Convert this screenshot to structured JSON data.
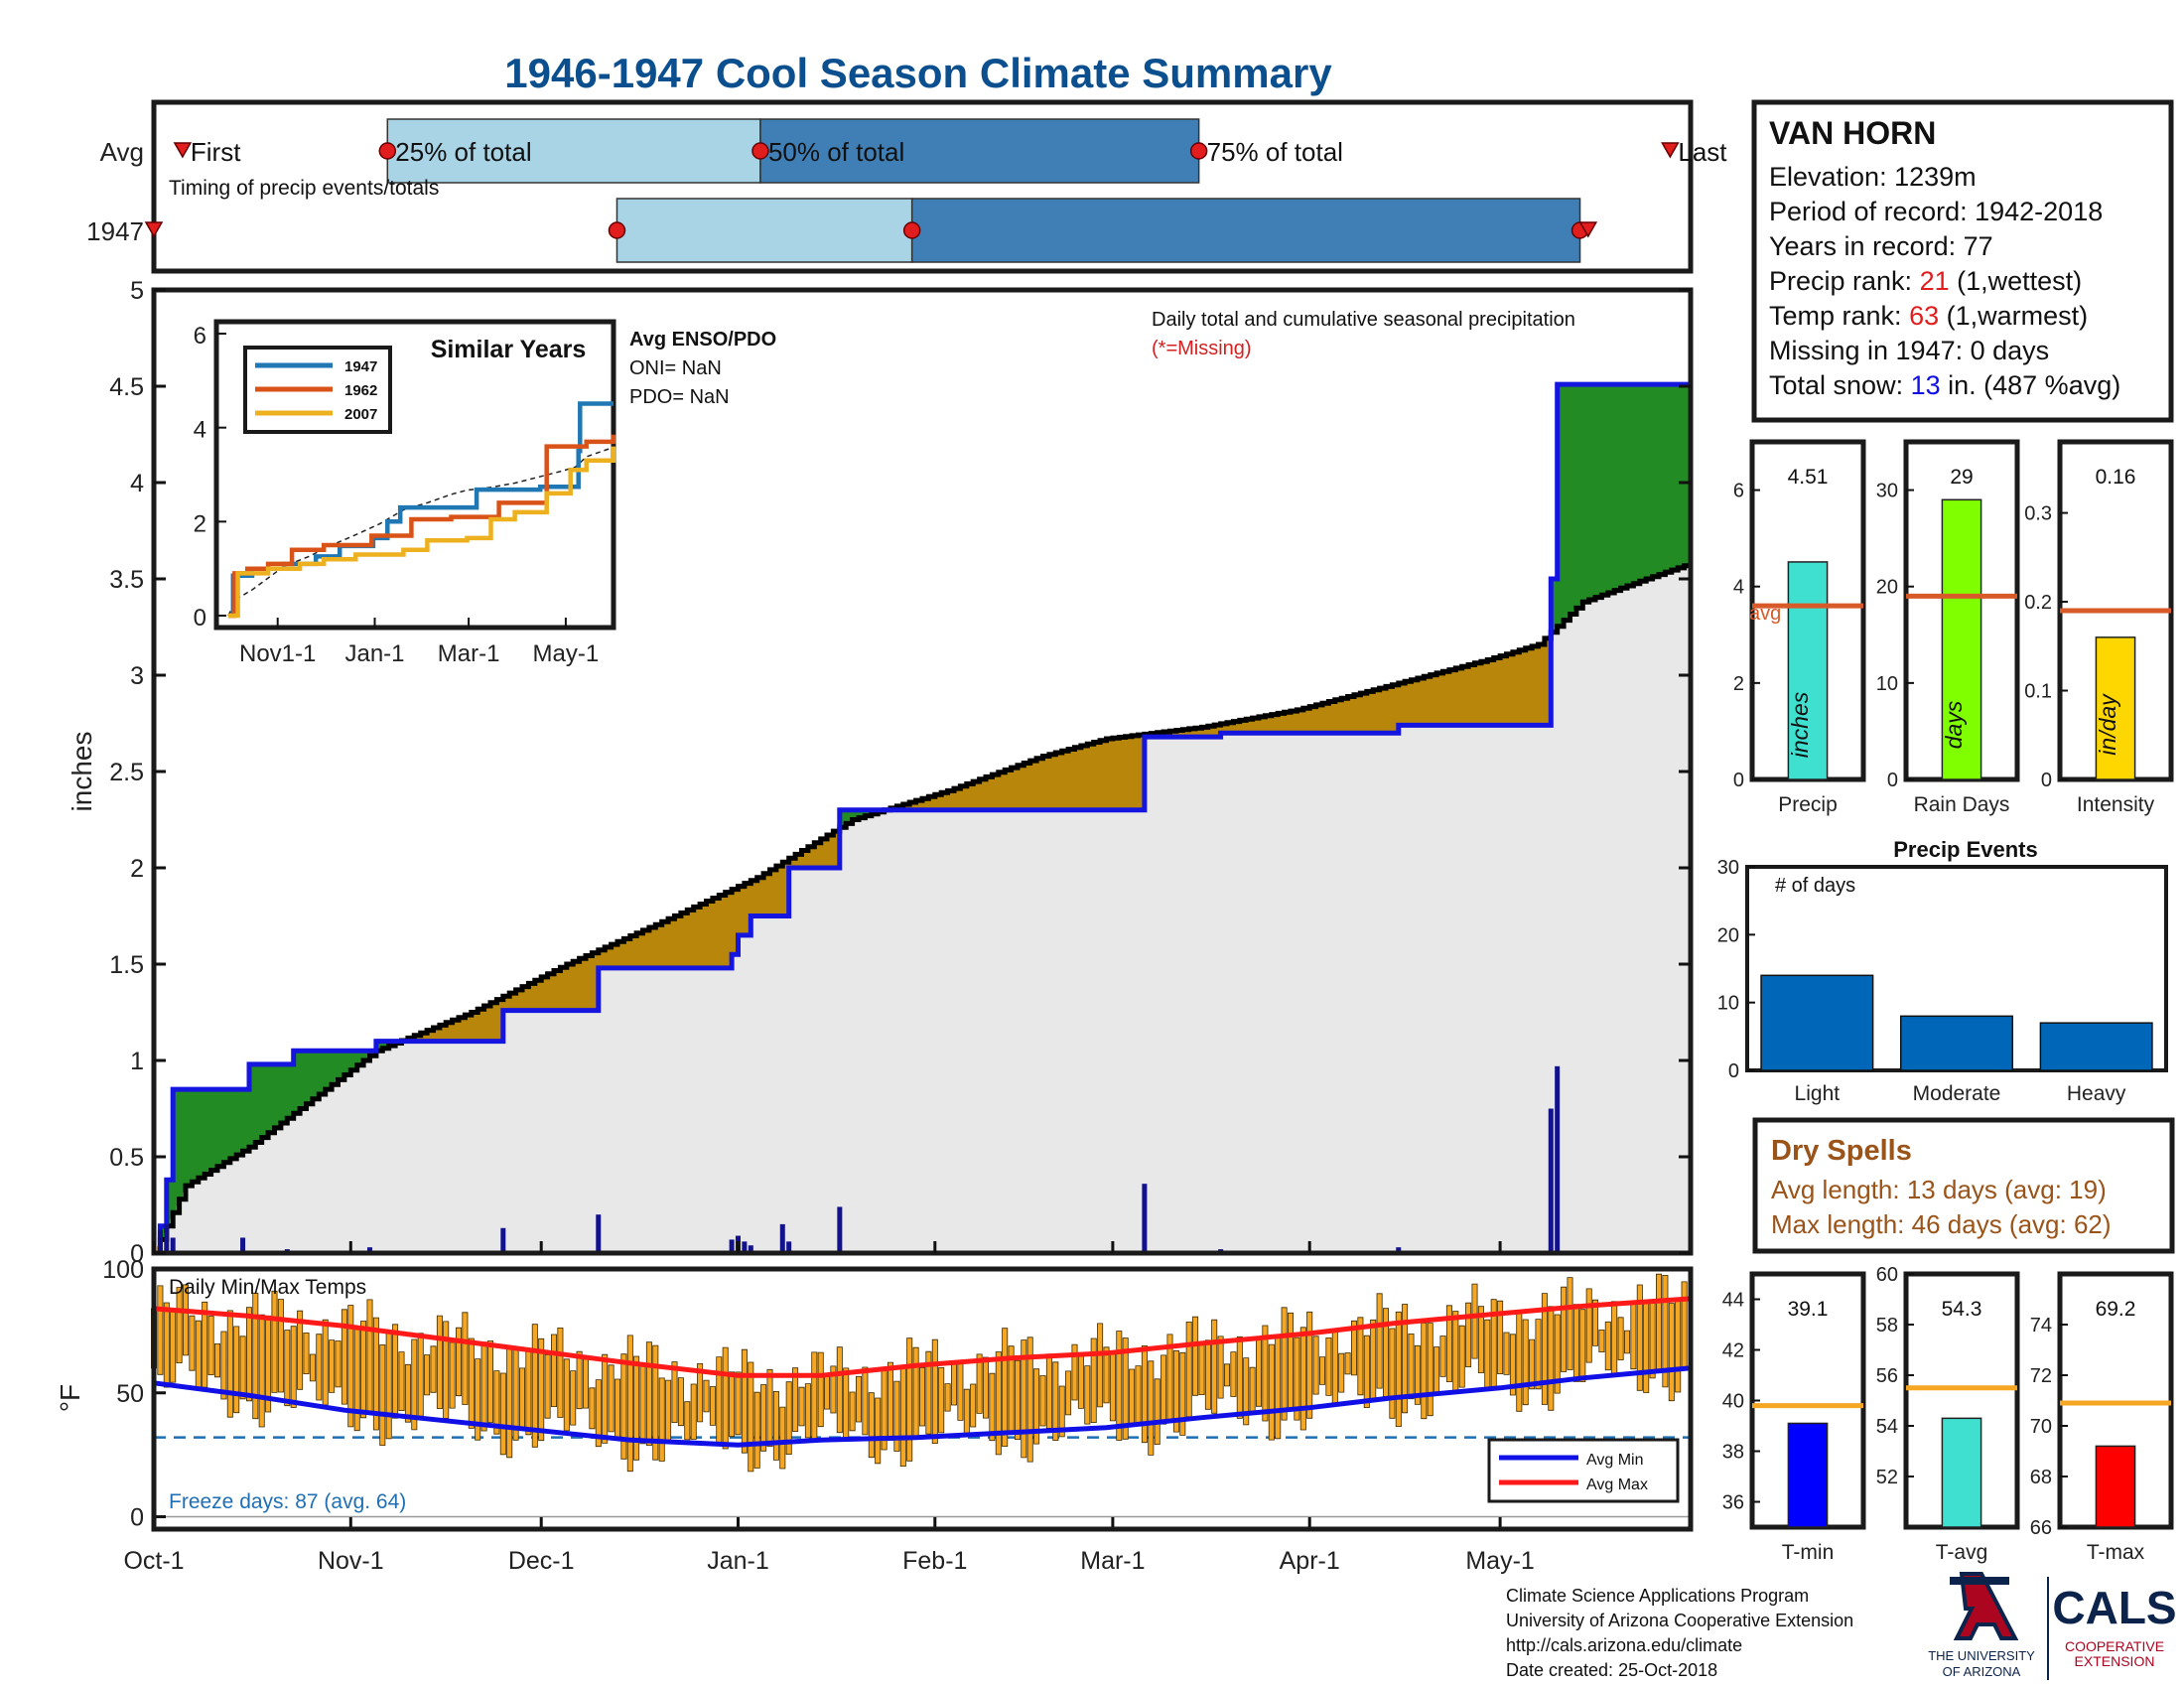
{
  "title": "1946-1947 Cool Season Climate Summary",
  "colors": {
    "title": "#0b4f8f",
    "light_blue": "#a8d4e6",
    "dark_blue": "#3f7fb5",
    "marker_red": "#e11d1d",
    "green": "#238b23",
    "brown": "#b8860b",
    "fill_grey": "#e8e8e8",
    "avg_orange": "#d85a28",
    "temp_bar": "#f5a623",
    "max_red": "#ff1a1a",
    "min_blue": "#1010e6"
  },
  "timing": {
    "rows": [
      "Avg",
      "1947"
    ],
    "note": "Timing of precip events/totals",
    "labels": {
      "first": "First",
      "p25": "25% of total",
      "p50": "50% of total",
      "p75": "75% of total",
      "last": "Last"
    },
    "avg": {
      "first_day": 7,
      "p25_day": 57,
      "p50_day": 148,
      "p75_day": 255,
      "last_day": 370
    },
    "y1947": {
      "first_day": 0,
      "p25_day": 113,
      "p50_day": 185,
      "p75_day": 348,
      "last_day": 350
    }
  },
  "station": {
    "name": "VAN HORN",
    "elevation": "Elevation: 1239m",
    "period": "Period of record: 1942-2018",
    "years": "Years in record: 77",
    "precip_rank_label": "Precip rank: ",
    "precip_rank": "21",
    "precip_rank_note": " (1,wettest)",
    "temp_rank_label": "Temp rank: ",
    "temp_rank": "63",
    "temp_rank_note": " (1,warmest)",
    "missing": "Missing in 1947: 0 days",
    "snow_label": "Total snow: ",
    "snow_value": "13",
    "snow_note": " in. (487 %avg)"
  },
  "main_plot": {
    "ylabel": "inches",
    "annotation_line1": "Daily total and cumulative seasonal precipitation",
    "annotation_line2": "(*=Missing)",
    "x_ticks": [
      "Oct-1",
      "Nov-1",
      "Dec-1",
      "Jan-1",
      "Feb-1",
      "Mar-1",
      "Apr-1",
      "May-1"
    ],
    "x_tick_days": [
      0,
      31,
      61,
      92,
      123,
      151,
      182,
      212
    ],
    "y_ticks": [
      "0",
      "0.5",
      "1",
      "1.5",
      "2",
      "2.5",
      "3",
      "3.5",
      "4",
      "4.5",
      "5"
    ],
    "ylim": [
      0,
      5
    ],
    "xlim_days": [
      0,
      242
    ],
    "enso_title": "Avg ENSO/PDO",
    "oni": "ONI= NaN",
    "pdo": "PDO= NaN"
  },
  "chart_data": [
    {
      "type": "area",
      "title": "Daily total and cumulative seasonal precipitation",
      "ylabel": "inches",
      "ylim": [
        0,
        5
      ],
      "series": [
        {
          "name": "1947 cumulative",
          "points": [
            [
              0,
              0
            ],
            [
              1,
              0.14
            ],
            [
              2,
              0.38
            ],
            [
              3,
              0.85
            ],
            [
              14,
              0.85
            ],
            [
              15,
              0.98
            ],
            [
              21,
              0.98
            ],
            [
              22,
              1.05
            ],
            [
              34,
              1.05
            ],
            [
              35,
              1.1
            ],
            [
              54,
              1.1
            ],
            [
              55,
              1.26
            ],
            [
              69,
              1.26
            ],
            [
              70,
              1.48
            ],
            [
              90,
              1.48
            ],
            [
              91,
              1.55
            ],
            [
              92,
              1.65
            ],
            [
              94,
              1.75
            ],
            [
              99,
              1.75
            ],
            [
              100,
              2.0
            ],
            [
              107,
              2.0
            ],
            [
              108,
              2.3
            ],
            [
              155,
              2.3
            ],
            [
              156,
              2.68
            ],
            [
              167,
              2.68
            ],
            [
              168,
              2.7
            ],
            [
              195,
              2.7
            ],
            [
              196,
              2.74
            ],
            [
              219,
              2.74
            ],
            [
              220,
              3.5
            ],
            [
              221,
              4.51
            ],
            [
              242,
              4.51
            ]
          ]
        },
        {
          "name": "Avg cumulative",
          "points": [
            [
              0,
              0
            ],
            [
              5,
              0.35
            ],
            [
              15,
              0.55
            ],
            [
              25,
              0.8
            ],
            [
              35,
              1.05
            ],
            [
              50,
              1.25
            ],
            [
              65,
              1.5
            ],
            [
              80,
              1.72
            ],
            [
              95,
              1.95
            ],
            [
              110,
              2.25
            ],
            [
              125,
              2.4
            ],
            [
              140,
              2.58
            ],
            [
              150,
              2.67
            ],
            [
              165,
              2.73
            ],
            [
              180,
              2.82
            ],
            [
              195,
              2.95
            ],
            [
              210,
              3.08
            ],
            [
              218,
              3.16
            ],
            [
              225,
              3.38
            ],
            [
              235,
              3.5
            ],
            [
              242,
              3.58
            ]
          ]
        },
        {
          "name": "Daily precip",
          "points": [
            [
              0,
              0.1
            ],
            [
              1,
              0.12
            ],
            [
              2,
              0.15
            ],
            [
              3,
              0.08
            ],
            [
              14,
              0.08
            ],
            [
              21,
              0.02
            ],
            [
              34,
              0.03
            ],
            [
              55,
              0.13
            ],
            [
              70,
              0.2
            ],
            [
              91,
              0.07
            ],
            [
              92,
              0.09
            ],
            [
              93,
              0.06
            ],
            [
              94,
              0.04
            ],
            [
              99,
              0.15
            ],
            [
              100,
              0.06
            ],
            [
              108,
              0.24
            ],
            [
              156,
              0.36
            ],
            [
              168,
              0.02
            ],
            [
              196,
              0.03
            ],
            [
              220,
              0.75
            ],
            [
              221,
              0.97
            ]
          ]
        }
      ]
    },
    {
      "type": "line",
      "title": "Similar Years",
      "x_ticks": [
        "Nov1-1",
        "Jan-1",
        "Mar-1",
        "May-1"
      ],
      "ylim": [
        0,
        6
      ],
      "series": [
        {
          "name": "1947",
          "color": "#1f77b4",
          "points": [
            [
              0,
              0
            ],
            [
              3,
              0.85
            ],
            [
              15,
              1.0
            ],
            [
              35,
              1.1
            ],
            [
              55,
              1.26
            ],
            [
              70,
              1.48
            ],
            [
              91,
              1.65
            ],
            [
              100,
              2.0
            ],
            [
              108,
              2.3
            ],
            [
              156,
              2.68
            ],
            [
              196,
              2.74
            ],
            [
              220,
              3.5
            ],
            [
              221,
              4.51
            ],
            [
              242,
              4.51
            ]
          ]
        },
        {
          "name": "1962",
          "color": "#d95319",
          "points": [
            [
              0,
              0
            ],
            [
              4,
              0.9
            ],
            [
              12,
              1.0
            ],
            [
              25,
              1.1
            ],
            [
              40,
              1.4
            ],
            [
              60,
              1.5
            ],
            [
              90,
              1.7
            ],
            [
              115,
              2.05
            ],
            [
              140,
              2.1
            ],
            [
              170,
              2.4
            ],
            [
              200,
              3.6
            ],
            [
              225,
              3.7
            ],
            [
              242,
              3.85
            ]
          ]
        },
        {
          "name": "2007",
          "color": "#edb120",
          "points": [
            [
              0,
              0
            ],
            [
              6,
              0.9
            ],
            [
              25,
              1.0
            ],
            [
              45,
              1.1
            ],
            [
              60,
              1.2
            ],
            [
              80,
              1.3
            ],
            [
              110,
              1.4
            ],
            [
              125,
              1.6
            ],
            [
              150,
              1.65
            ],
            [
              165,
              2.05
            ],
            [
              180,
              2.2
            ],
            [
              200,
              2.6
            ],
            [
              215,
              3.1
            ],
            [
              225,
              3.3
            ],
            [
              242,
              3.6
            ]
          ]
        }
      ]
    },
    {
      "type": "bar",
      "title": "Precip",
      "categories": [
        "Precip"
      ],
      "values": [
        4.51
      ],
      "avg": 3.6,
      "ylim": [
        0,
        7
      ],
      "unit": "inches"
    },
    {
      "type": "bar",
      "title": "Rain Days",
      "categories": [
        "Rain Days"
      ],
      "values": [
        29
      ],
      "avg": 19,
      "ylim": [
        0,
        35
      ],
      "unit": "days"
    },
    {
      "type": "bar",
      "title": "Intensity",
      "categories": [
        "Intensity"
      ],
      "values": [
        0.16
      ],
      "avg": 0.19,
      "ylim": [
        0,
        0.38
      ],
      "unit": "in/day"
    },
    {
      "type": "bar",
      "title": "Precip Events",
      "ylabel": "# of days",
      "categories": [
        "Light",
        "Moderate",
        "Heavy"
      ],
      "values": [
        14,
        8,
        7
      ],
      "ylim": [
        0,
        30
      ]
    },
    {
      "type": "bar",
      "title": "Daily Min/Max Temps",
      "ylabel": "°F",
      "ylim": [
        -5,
        100
      ],
      "x_ticks": [
        "Oct-1",
        "Nov-1",
        "Dec-1",
        "Jan-1",
        "Feb-1",
        "Mar-1",
        "Apr-1",
        "May-1"
      ],
      "freeze_line": 32,
      "series": [
        {
          "name": "Avg Max",
          "points": [
            [
              0,
              84
            ],
            [
              15,
              81
            ],
            [
              30,
              77
            ],
            [
              45,
              72
            ],
            [
              60,
              67
            ],
            [
              75,
              62
            ],
            [
              92,
              57
            ],
            [
              105,
              57
            ],
            [
              120,
              61
            ],
            [
              135,
              64
            ],
            [
              150,
              66
            ],
            [
              165,
              70
            ],
            [
              182,
              74
            ],
            [
              195,
              78
            ],
            [
              212,
              82
            ],
            [
              225,
              85
            ],
            [
              242,
              88
            ]
          ]
        },
        {
          "name": "Avg Min",
          "points": [
            [
              0,
              54
            ],
            [
              15,
              49
            ],
            [
              30,
              43
            ],
            [
              45,
              39
            ],
            [
              60,
              35
            ],
            [
              75,
              31
            ],
            [
              92,
              29
            ],
            [
              105,
              31
            ],
            [
              120,
              32
            ],
            [
              135,
              34
            ],
            [
              150,
              36
            ],
            [
              165,
              40
            ],
            [
              182,
              44
            ],
            [
              195,
              48
            ],
            [
              212,
              52
            ],
            [
              225,
              56
            ],
            [
              242,
              60
            ]
          ]
        }
      ]
    },
    {
      "type": "bar",
      "title": "T-min",
      "categories": [
        "T-min"
      ],
      "values": [
        39.1
      ],
      "avg": 39.8,
      "ylim": [
        35,
        45
      ]
    },
    {
      "type": "bar",
      "title": "T-avg",
      "categories": [
        "T-avg"
      ],
      "values": [
        54.3
      ],
      "avg": 55.5,
      "ylim": [
        50,
        60
      ]
    },
    {
      "type": "bar",
      "title": "T-max",
      "categories": [
        "T-max"
      ],
      "values": [
        69.2
      ],
      "avg": 70.9,
      "ylim": [
        66,
        76
      ]
    }
  ],
  "similar_years": {
    "title": "Similar Years",
    "x_ticks": [
      "Nov1-1",
      "Jan-1",
      "Mar-1",
      "May-1"
    ],
    "y_ticks": [
      "0",
      "2",
      "4",
      "6"
    ]
  },
  "mini_bars": {
    "precip": {
      "value_label": "4.51",
      "label": "Precip",
      "unit": "inches",
      "avg_label": "avg",
      "color": "#40e0d0",
      "ticks": [
        "0",
        "2",
        "4",
        "6"
      ]
    },
    "rain_days": {
      "value_label": "29",
      "label": "Rain Days",
      "unit": "days",
      "color": "#7fff00",
      "ticks": [
        "0",
        "10",
        "20",
        "30"
      ]
    },
    "intensity": {
      "value_label": "0.16",
      "label": "Intensity",
      "unit": "in/day",
      "color": "#ffd700",
      "ticks": [
        "0",
        "0.1",
        "0.2",
        "0.3"
      ]
    }
  },
  "events": {
    "title": "Precip Events",
    "ylabel": "# of days",
    "y_ticks": [
      "0",
      "10",
      "20",
      "30"
    ],
    "color": "#0067b8"
  },
  "dry_spells": {
    "title": "Dry Spells",
    "avg_line": "Avg length: 13 days (avg: 19)",
    "max_line": "Max length: 46 days (avg: 62)"
  },
  "temps": {
    "title": "Daily Min/Max Temps",
    "ylabel": "°F",
    "y_ticks": [
      "0",
      "50",
      "100"
    ],
    "freeze_text": "Freeze days: 87 (avg. 64)",
    "legend_min": "Avg Min",
    "legend_max": "Avg Max"
  },
  "temp_bars": {
    "tmin": {
      "value_label": "39.1",
      "label": "T-min",
      "color": "#0000ff",
      "ticks": [
        "36",
        "38",
        "40",
        "42",
        "44"
      ]
    },
    "tavg": {
      "value_label": "54.3",
      "label": "T-avg",
      "color": "#40e0d0",
      "ticks": [
        "52",
        "54",
        "56",
        "58",
        "60"
      ]
    },
    "tmax": {
      "value_label": "69.2",
      "label": "T-max",
      "color": "#ff0000",
      "ticks": [
        "66",
        "68",
        "70",
        "72",
        "74"
      ]
    }
  },
  "footer": {
    "line1": "Climate Science Applications Program",
    "line2": "University of Arizona Cooperative Extension",
    "line3": "http://cals.arizona.edu/climate",
    "line4": " Date created: 25-Oct-2018"
  },
  "logos": {
    "ua_line1": "THE UNIVERSITY",
    "ua_line2": "OF ARIZONA",
    "cals": "CALS",
    "cals_line1": "COOPERATIVE",
    "cals_line2": "EXTENSION"
  }
}
